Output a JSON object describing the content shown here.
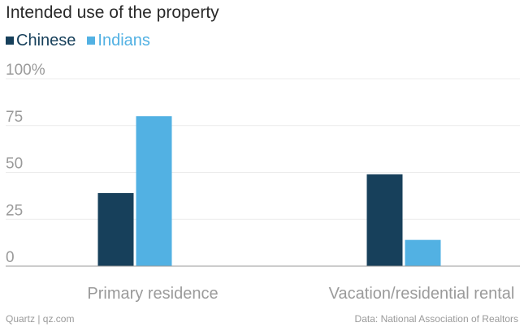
{
  "header": {
    "title": "Intended use of the property"
  },
  "footer": {
    "source_left": "Quartz | qz.com",
    "source_right": "Data: National Association of Realtors"
  },
  "colors": {
    "series_chinese": "#17405b",
    "series_indians": "#52b1e3",
    "axis_text": "#9a9a9a",
    "gridline": "#ececec",
    "baseline": "#9a9a9a"
  },
  "chart_data": {
    "type": "bar",
    "title": "Intended use of the property",
    "categories": [
      "Primary residence",
      "Vacation/residential rental"
    ],
    "series": [
      {
        "name": "Chinese",
        "values": [
          39,
          49
        ]
      },
      {
        "name": "Indians",
        "values": [
          80,
          14
        ]
      }
    ],
    "y_ticks": [
      {
        "value": 0,
        "label": "0"
      },
      {
        "value": 25,
        "label": "25"
      },
      {
        "value": 50,
        "label": "50"
      },
      {
        "value": 75,
        "label": "75"
      },
      {
        "value": 100,
        "label": "100%"
      }
    ],
    "ylim": [
      0,
      100
    ],
    "xlabel": "",
    "ylabel": "",
    "grid": true,
    "legend_position": "top-left"
  }
}
